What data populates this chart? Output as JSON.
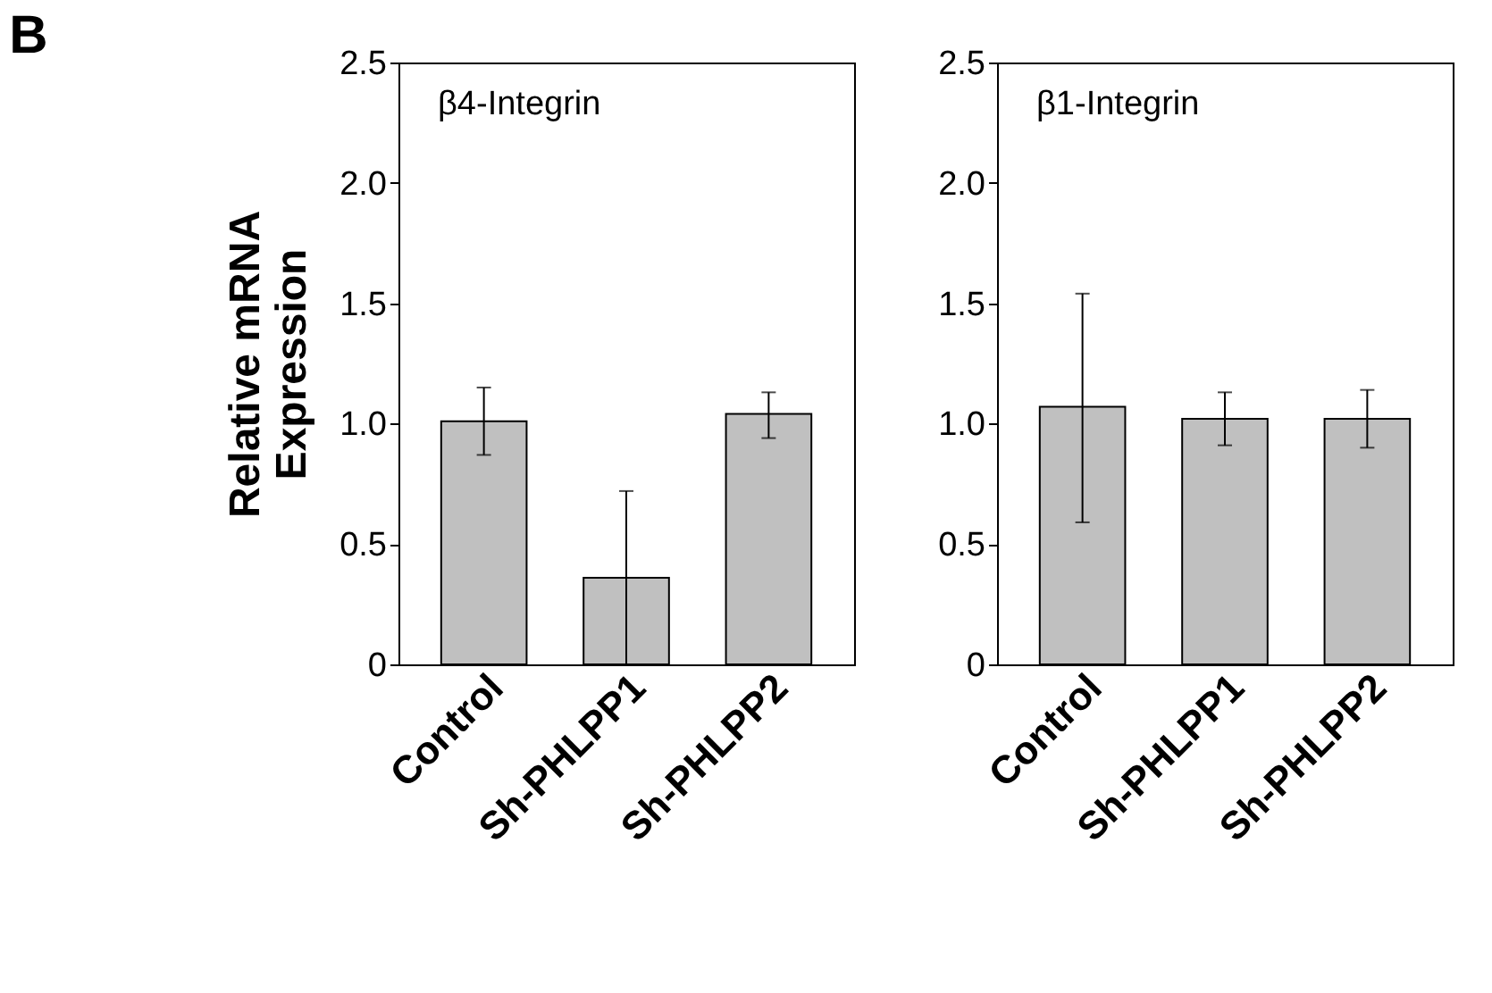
{
  "chart_data": [
    {
      "type": "bar",
      "title": "β4-Integrin",
      "ylabel": "Relative mRNA Expression",
      "annotations": [
        "B"
      ],
      "categories": [
        "Control",
        "Sh-PHLPP1",
        "Sh-PHLPP2"
      ],
      "values": [
        1.01,
        0.36,
        1.04
      ],
      "color": "#c0c0c0",
      "errors": [
        [
          0.87,
          1.15
        ],
        [
          0.0,
          0.72
        ],
        [
          0.94,
          1.13
        ]
      ],
      "ylim": [
        0,
        2.5
      ],
      "yticks": [
        0,
        {
          "value": 0.5,
          "label": "0.5"
        },
        {
          "value": 1,
          "label": "1.0"
        },
        {
          "value": 1.5,
          "label": "1.5"
        },
        {
          "value": 2,
          "label": "2.0"
        },
        {
          "value": 2.5,
          "label": "2.5"
        }
      ],
      "grid": false
    },
    {
      "type": "bar",
      "title": "β1-Integrin",
      "categories": [
        "Control",
        "Sh-PHLPP1",
        "Sh-PHLPP2"
      ],
      "values": [
        1.07,
        1.02,
        1.02
      ],
      "color": "#c0c0c0",
      "errors": [
        [
          0.59,
          1.54
        ],
        [
          0.91,
          1.13
        ],
        [
          0.9,
          1.14
        ]
      ],
      "ylim": [
        0,
        2.5
      ],
      "yticks": [
        0,
        {
          "value": 0.5,
          "label": "0.5"
        },
        {
          "value": 1,
          "label": "1.0"
        },
        {
          "value": 1.5,
          "label": "1.5"
        },
        {
          "value": 2,
          "label": "2.0"
        },
        {
          "value": 2.5,
          "label": "2.5"
        }
      ],
      "grid": false
    }
  ]
}
